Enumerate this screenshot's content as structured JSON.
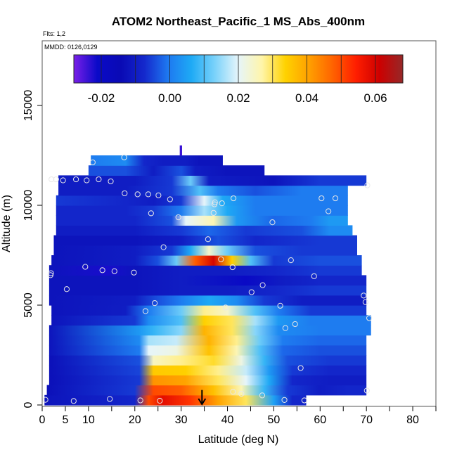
{
  "chart_data": {
    "type": "heatmap",
    "title": "ATOM2 Northeast_Pacific_1 MS_Abs_400nm",
    "flights_note": "Flts: 1,2",
    "mmdd_note": "MMDD: 0126,0129",
    "xlabel": "Latitude (deg N)",
    "ylabel": "Altitude (m)",
    "xlim": [
      0,
      85
    ],
    "ylim": [
      0,
      18000
    ],
    "x_ticks": [
      0,
      5,
      10,
      20,
      30,
      40,
      50,
      60,
      70,
      80
    ],
    "x_minor_ticks": [
      15,
      25,
      35,
      45,
      55,
      65,
      75,
      85
    ],
    "y_ticks": [
      0,
      5000,
      10000,
      15000
    ],
    "colorbar": {
      "min": -0.028,
      "max": 0.068,
      "ticks": [
        -0.02,
        0.0,
        0.02,
        0.04,
        0.06
      ],
      "tick_labels": [
        "-0.02",
        "0.00",
        "0.02",
        "0.04",
        "0.06"
      ],
      "colors": [
        "#7a1fe8",
        "#0a0ac8",
        "#0a0ab4",
        "#1428cc",
        "#1e78f0",
        "#1eaaf5",
        "#7ad2fa",
        "#e6f5fa",
        "#fff5aa",
        "#ffd200",
        "#ffa000",
        "#ff6400",
        "#ff1e00",
        "#cd0000",
        "#962828"
      ]
    },
    "bands": [
      {
        "y0": 0,
        "y1": 500,
        "x0": 0.5,
        "x1": 57,
        "cells": [
          [
            0.5,
            -0.012
          ],
          [
            20,
            -0.008
          ],
          [
            23,
            0.05
          ],
          [
            26,
            0.058
          ],
          [
            32,
            0.052
          ],
          [
            38,
            0.04
          ],
          [
            44,
            0.03
          ],
          [
            50,
            0.005
          ],
          [
            54,
            -0.008
          ]
        ]
      },
      {
        "y0": 500,
        "y1": 1000,
        "x0": 1,
        "x1": 70,
        "cells": [
          [
            1,
            -0.013
          ],
          [
            20,
            -0.006
          ],
          [
            24,
            0.05
          ],
          [
            30,
            0.048
          ],
          [
            37,
            0.036
          ],
          [
            43,
            0.026
          ],
          [
            48,
            0.008
          ],
          [
            53,
            -0.006
          ],
          [
            60,
            -0.01
          ],
          [
            66,
            -0.008
          ]
        ]
      },
      {
        "y0": 1000,
        "y1": 1500,
        "x0": 1.5,
        "x1": 70,
        "cells": [
          [
            1.5,
            -0.013
          ],
          [
            21,
            -0.006
          ],
          [
            24,
            0.042
          ],
          [
            31,
            0.04
          ],
          [
            38,
            0.03
          ],
          [
            44,
            0.02
          ],
          [
            49,
            0.006
          ],
          [
            54,
            -0.008
          ],
          [
            62,
            -0.01
          ]
        ]
      },
      {
        "y0": 1500,
        "y1": 2000,
        "x0": 1.5,
        "x1": 70,
        "cells": [
          [
            1.5,
            -0.013
          ],
          [
            21,
            -0.005
          ],
          [
            24,
            0.035
          ],
          [
            31,
            0.034
          ],
          [
            38,
            0.028
          ],
          [
            44,
            0.018
          ],
          [
            49,
            0.004
          ],
          [
            54,
            -0.006
          ],
          [
            62,
            -0.008
          ]
        ]
      },
      {
        "y0": 2000,
        "y1": 2500,
        "x0": 1.5,
        "x1": 70,
        "cells": [
          [
            1.5,
            -0.013
          ],
          [
            21,
            -0.004
          ],
          [
            24,
            0.025
          ],
          [
            30,
            0.028
          ],
          [
            37,
            0.032
          ],
          [
            43,
            0.022
          ],
          [
            48,
            0.008
          ],
          [
            53,
            -0.004
          ],
          [
            62,
            -0.006
          ]
        ]
      },
      {
        "y0": 2500,
        "y1": 3000,
        "x0": 1.5,
        "x1": 70,
        "cells": [
          [
            1.5,
            -0.012
          ],
          [
            21,
            0.0
          ],
          [
            23,
            0.02
          ],
          [
            29,
            0.022
          ],
          [
            36,
            0.036
          ],
          [
            42,
            0.026
          ],
          [
            47,
            0.01
          ],
          [
            52,
            -0.002
          ],
          [
            60,
            -0.004
          ]
        ]
      },
      {
        "y0": 3000,
        "y1": 3500,
        "x0": 1.5,
        "x1": 70,
        "cells": [
          [
            1.5,
            -0.012
          ],
          [
            21,
            0.002
          ],
          [
            23,
            0.016
          ],
          [
            29,
            0.018
          ],
          [
            36,
            0.038
          ],
          [
            42,
            0.028
          ],
          [
            47,
            0.012
          ],
          [
            52,
            0.0
          ],
          [
            60,
            -0.002
          ]
        ]
      },
      {
        "y0": 3500,
        "y1": 4000,
        "x0": 1.5,
        "x1": 71,
        "cells": [
          [
            1.5,
            -0.012
          ],
          [
            21,
            0.004
          ],
          [
            24,
            0.008
          ],
          [
            30,
            0.014
          ],
          [
            35,
            0.038
          ],
          [
            41,
            0.03
          ],
          [
            46,
            0.014
          ],
          [
            51,
            0.002
          ],
          [
            60,
            0.0
          ]
        ]
      },
      {
        "y0": 4000,
        "y1": 4500,
        "x0": 2,
        "x1": 71,
        "cells": [
          [
            2,
            -0.012
          ],
          [
            20,
            -0.006
          ],
          [
            23,
            0.002
          ],
          [
            30,
            0.01
          ],
          [
            35,
            0.034
          ],
          [
            41,
            0.03
          ],
          [
            46,
            0.016
          ],
          [
            51,
            0.004
          ],
          [
            58,
            0.0
          ]
        ]
      },
      {
        "y0": 4500,
        "y1": 5000,
        "x0": 2,
        "x1": 70,
        "cells": [
          [
            2,
            -0.012
          ],
          [
            18,
            -0.01
          ],
          [
            23,
            0.0
          ],
          [
            30,
            0.012
          ],
          [
            35,
            0.028
          ],
          [
            40,
            0.024
          ],
          [
            46,
            0.01
          ],
          [
            51,
            0.0
          ],
          [
            58,
            -0.006
          ]
        ]
      },
      {
        "y0": 5000,
        "y1": 5500,
        "x0": 1.5,
        "x1": 70,
        "cells": [
          [
            1.5,
            -0.012
          ],
          [
            20,
            -0.01
          ],
          [
            25,
            -0.004
          ],
          [
            30,
            0.0
          ],
          [
            36,
            0.006
          ],
          [
            42,
            0.002
          ],
          [
            48,
            -0.006
          ],
          [
            56,
            -0.01
          ]
        ]
      },
      {
        "y0": 5500,
        "y1": 6000,
        "x0": 1.5,
        "x1": 70,
        "cells": [
          [
            1.5,
            -0.012
          ],
          [
            20,
            -0.012
          ],
          [
            30,
            -0.01
          ],
          [
            40,
            -0.01
          ],
          [
            50,
            -0.008
          ],
          [
            60,
            -0.006
          ]
        ]
      },
      {
        "y0": 6000,
        "y1": 6500,
        "x0": 1.5,
        "x1": 70,
        "cells": [
          [
            1.5,
            -0.012
          ],
          [
            20,
            -0.012
          ],
          [
            30,
            -0.01
          ],
          [
            44,
            -0.02
          ],
          [
            52,
            -0.01
          ],
          [
            60,
            -0.008
          ]
        ]
      },
      {
        "y0": 6500,
        "y1": 7000,
        "x0": 1.5,
        "x1": 69,
        "cells": [
          [
            1.5,
            -0.012
          ],
          [
            14,
            -0.022
          ],
          [
            20,
            -0.012
          ],
          [
            30,
            -0.01
          ],
          [
            40,
            -0.01
          ],
          [
            50,
            -0.008
          ],
          [
            60,
            -0.006
          ]
        ]
      },
      {
        "y0": 7000,
        "y1": 7500,
        "x0": 2,
        "x1": 69,
        "cells": [
          [
            2,
            -0.012
          ],
          [
            20,
            -0.01
          ],
          [
            25,
            -0.004
          ],
          [
            29,
            0.012
          ],
          [
            33,
            0.048
          ],
          [
            37,
            0.06
          ],
          [
            41,
            0.034
          ],
          [
            45,
            0.01
          ],
          [
            50,
            -0.006
          ],
          [
            60,
            -0.004
          ]
        ]
      },
      {
        "y0": 7500,
        "y1": 8000,
        "x0": 2.5,
        "x1": 68,
        "cells": [
          [
            2.5,
            -0.012
          ],
          [
            20,
            -0.01
          ],
          [
            28,
            -0.006
          ],
          [
            32,
            0.006
          ],
          [
            36,
            0.024
          ],
          [
            40,
            0.012
          ],
          [
            46,
            -0.004
          ],
          [
            56,
            -0.006
          ]
        ]
      },
      {
        "y0": 8000,
        "y1": 8500,
        "x0": 2.5,
        "x1": 68,
        "cells": [
          [
            2.5,
            -0.012
          ],
          [
            20,
            -0.012
          ],
          [
            30,
            -0.01
          ],
          [
            38,
            -0.004
          ],
          [
            46,
            -0.008
          ],
          [
            60,
            -0.006
          ]
        ]
      },
      {
        "y0": 8500,
        "y1": 9000,
        "x0": 3,
        "x1": 67,
        "cells": [
          [
            3,
            -0.01
          ],
          [
            20,
            -0.01
          ],
          [
            30,
            -0.006
          ],
          [
            36,
            -0.002
          ],
          [
            44,
            -0.006
          ],
          [
            56,
            -0.004
          ],
          [
            62,
            0.002
          ]
        ]
      },
      {
        "y0": 9000,
        "y1": 9500,
        "x0": 3,
        "x1": 66,
        "cells": [
          [
            3,
            -0.008
          ],
          [
            20,
            -0.008
          ],
          [
            28,
            -0.004
          ],
          [
            31,
            0.02
          ],
          [
            37,
            0.026
          ],
          [
            42,
            0.004
          ],
          [
            50,
            -0.002
          ],
          [
            58,
            0.0
          ],
          [
            62,
            0.004
          ]
        ]
      },
      {
        "y0": 9500,
        "y1": 10000,
        "x0": 3,
        "x1": 66,
        "cells": [
          [
            3,
            -0.008
          ],
          [
            18,
            -0.008
          ],
          [
            24,
            -0.006
          ],
          [
            30,
            0.0
          ],
          [
            35,
            0.016
          ],
          [
            40,
            0.006
          ],
          [
            46,
            0.0
          ],
          [
            56,
            0.0
          ]
        ]
      },
      {
        "y0": 10000,
        "y1": 10500,
        "x0": 3,
        "x1": 66,
        "cells": [
          [
            3,
            -0.006
          ],
          [
            18,
            -0.008
          ],
          [
            24,
            -0.01
          ],
          [
            30,
            -0.006
          ],
          [
            35,
            0.02
          ],
          [
            39,
            0.006
          ],
          [
            46,
            0.0
          ],
          [
            56,
            0.0
          ]
        ]
      },
      {
        "y0": 10500,
        "y1": 11000,
        "x0": 3.5,
        "x1": 66,
        "cells": [
          [
            3.5,
            -0.01
          ],
          [
            18,
            -0.01
          ],
          [
            28,
            -0.006
          ],
          [
            34,
            0.01
          ],
          [
            38,
            0.0
          ],
          [
            46,
            -0.004
          ],
          [
            56,
            0.0
          ]
        ]
      },
      {
        "y0": 11000,
        "y1": 11500,
        "x0": 3.5,
        "x1": 70,
        "cells": [
          [
            3.5,
            -0.01
          ],
          [
            20,
            -0.01
          ],
          [
            28,
            -0.006
          ],
          [
            32,
            0.012
          ],
          [
            36,
            -0.01
          ],
          [
            50,
            -0.012
          ],
          [
            60,
            -0.006
          ]
        ]
      },
      {
        "y0": 11500,
        "y1": 12000,
        "x0": 10,
        "x1": 48,
        "cells": [
          [
            10,
            -0.004
          ],
          [
            18,
            -0.004
          ],
          [
            24,
            -0.01
          ],
          [
            30,
            -0.004
          ],
          [
            33,
            -0.01
          ],
          [
            40,
            -0.012
          ]
        ]
      },
      {
        "y0": 12000,
        "y1": 12500,
        "x0": 10.5,
        "x1": 39,
        "cells": [
          [
            10.5,
            0.0
          ],
          [
            18,
            0.002
          ],
          [
            22,
            -0.008
          ],
          [
            26,
            -0.01
          ],
          [
            31,
            -0.01
          ],
          [
            34,
            -0.012
          ]
        ]
      },
      {
        "y0": 12500,
        "y1": 13000,
        "x0": 29.7,
        "x1": 30.2,
        "cells": [
          [
            29.7,
            -0.024
          ]
        ]
      }
    ],
    "points": [
      [
        0.7,
        260
      ],
      [
        6.8,
        200
      ],
      [
        14.6,
        300
      ],
      [
        21.2,
        230
      ],
      [
        25.4,
        210
      ],
      [
        41.2,
        660
      ],
      [
        43,
        560
      ],
      [
        47.5,
        480
      ],
      [
        52.3,
        250
      ],
      [
        56.6,
        230
      ],
      [
        70.1,
        720
      ],
      [
        55.8,
        1850
      ],
      [
        52.5,
        3850
      ],
      [
        54.6,
        4050
      ],
      [
        70.6,
        4350
      ],
      [
        22.3,
        4700
      ],
      [
        24.3,
        5100
      ],
      [
        39.6,
        4880
      ],
      [
        51.4,
        4970
      ],
      [
        69.8,
        5150
      ],
      [
        5.3,
        5800
      ],
      [
        45.2,
        5650
      ],
      [
        47.6,
        6000
      ],
      [
        69.4,
        5480
      ],
      [
        1.8,
        6500
      ],
      [
        1.9,
        6600
      ],
      [
        9.3,
        6920
      ],
      [
        13,
        6750
      ],
      [
        15.6,
        6700
      ],
      [
        19.8,
        6630
      ],
      [
        38.6,
        7300
      ],
      [
        41.1,
        6900
      ],
      [
        53.7,
        7250
      ],
      [
        58.7,
        6450
      ],
      [
        26.2,
        7900
      ],
      [
        35.8,
        8300
      ],
      [
        29.4,
        9400
      ],
      [
        23.5,
        9600
      ],
      [
        37,
        9620
      ],
      [
        49.7,
        9150
      ],
      [
        38.8,
        10100
      ],
      [
        37.2,
        10050
      ],
      [
        17.8,
        10600
      ],
      [
        20.6,
        10550
      ],
      [
        22.9,
        10550
      ],
      [
        25.1,
        10500
      ],
      [
        27.6,
        10300
      ],
      [
        41.3,
        10350
      ],
      [
        60.3,
        10350
      ],
      [
        63.3,
        10350
      ],
      [
        61.8,
        9700
      ],
      [
        2,
        11300
      ],
      [
        3,
        11300
      ],
      [
        4.5,
        11250
      ],
      [
        7.3,
        11300
      ],
      [
        9.6,
        11250
      ],
      [
        12.2,
        11300
      ],
      [
        14.8,
        11200
      ],
      [
        17.7,
        12400
      ],
      [
        10.9,
        12150
      ],
      [
        37.3,
        10150
      ],
      [
        70.2,
        11000
      ]
    ],
    "arrow": {
      "x": 34.5,
      "from": 750,
      "to": 0
    }
  }
}
